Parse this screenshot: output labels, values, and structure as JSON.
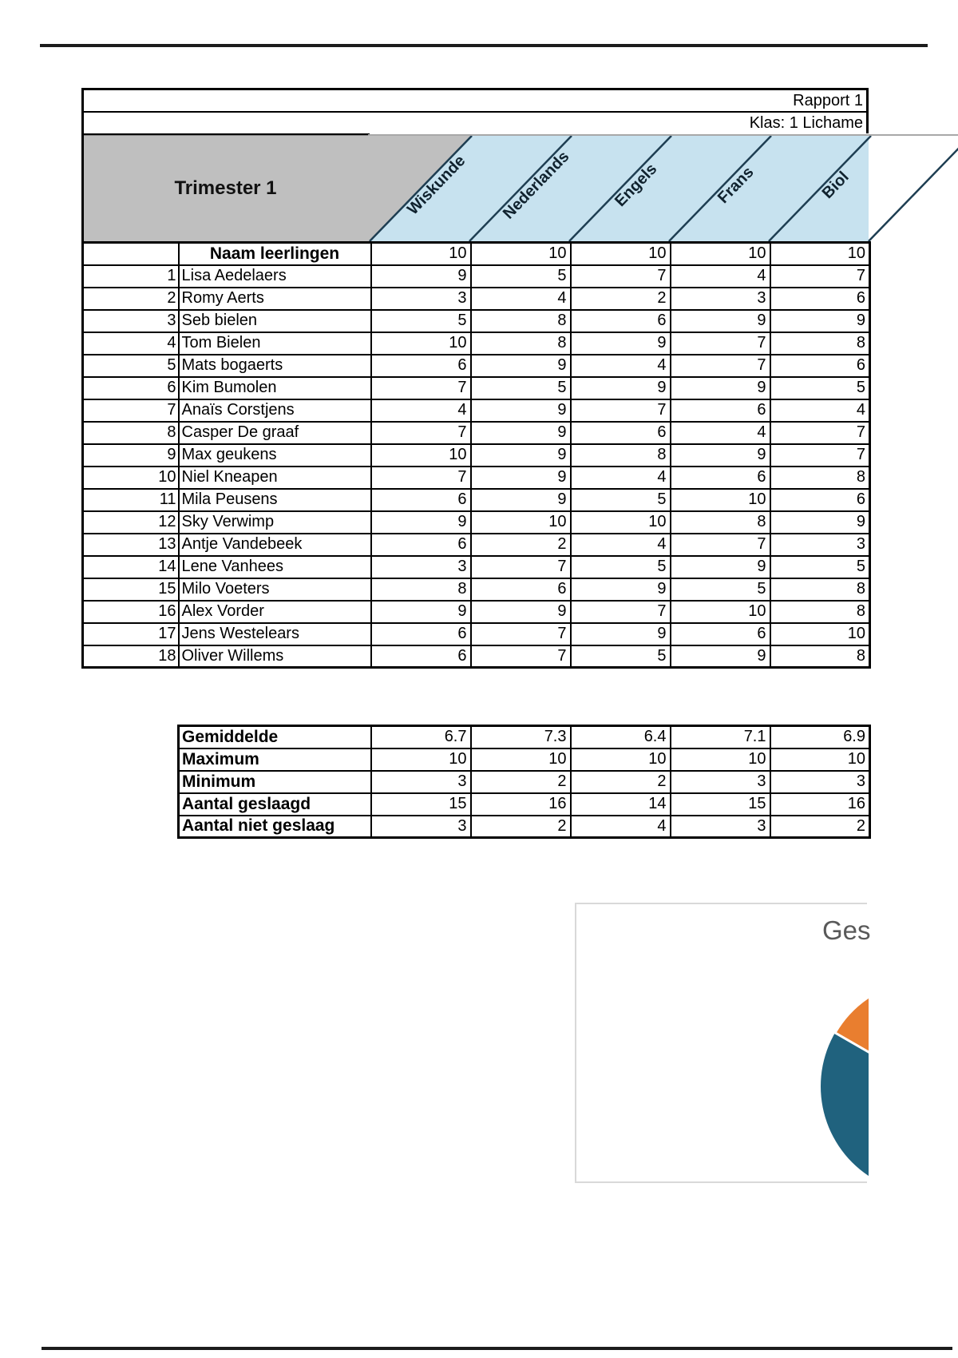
{
  "page": {
    "report_title": "Rapport 1",
    "class_label": "Klas: 1 Lichame",
    "trimester_label": "Trimester 1"
  },
  "table": {
    "students_header": "Naam leerlingen",
    "subjects": [
      "Wiskunde",
      "Nederlands",
      "Engels",
      "Frans",
      "Biol"
    ],
    "max_scores": [
      10,
      10,
      10,
      10,
      10
    ],
    "students": [
      {
        "nr": 1,
        "name": "Lisa Aedelaers",
        "grades": [
          9,
          5,
          7,
          4,
          7
        ]
      },
      {
        "nr": 2,
        "name": "Romy Aerts",
        "grades": [
          3,
          4,
          2,
          3,
          6
        ]
      },
      {
        "nr": 3,
        "name": "Seb bielen",
        "grades": [
          5,
          8,
          6,
          9,
          9
        ]
      },
      {
        "nr": 4,
        "name": "Tom Bielen",
        "grades": [
          10,
          8,
          9,
          7,
          8
        ]
      },
      {
        "nr": 5,
        "name": "Mats bogaerts",
        "grades": [
          6,
          9,
          4,
          7,
          6
        ]
      },
      {
        "nr": 6,
        "name": "Kim Bumolen",
        "grades": [
          7,
          5,
          9,
          9,
          5
        ]
      },
      {
        "nr": 7,
        "name": "Anaïs Corstjens",
        "grades": [
          4,
          9,
          7,
          6,
          4
        ]
      },
      {
        "nr": 8,
        "name": "Casper De graaf",
        "grades": [
          7,
          9,
          6,
          4,
          7
        ]
      },
      {
        "nr": 9,
        "name": "Max geukens",
        "grades": [
          10,
          9,
          8,
          9,
          7
        ]
      },
      {
        "nr": 10,
        "name": "Niel Kneapen",
        "grades": [
          7,
          9,
          4,
          6,
          8
        ]
      },
      {
        "nr": 11,
        "name": "Mila Peusens",
        "grades": [
          6,
          9,
          5,
          10,
          6
        ]
      },
      {
        "nr": 12,
        "name": "Sky Verwimp",
        "grades": [
          9,
          10,
          10,
          8,
          9
        ]
      },
      {
        "nr": 13,
        "name": "Antje Vandebeek",
        "grades": [
          6,
          2,
          4,
          7,
          3
        ]
      },
      {
        "nr": 14,
        "name": "Lene Vanhees",
        "grades": [
          3,
          7,
          5,
          9,
          5
        ]
      },
      {
        "nr": 15,
        "name": "Milo Voeters",
        "grades": [
          8,
          6,
          9,
          5,
          8
        ]
      },
      {
        "nr": 16,
        "name": "Alex Vorder",
        "grades": [
          9,
          9,
          7,
          10,
          8
        ]
      },
      {
        "nr": 17,
        "name": "Jens Westelears",
        "grades": [
          6,
          7,
          9,
          6,
          10
        ]
      },
      {
        "nr": 18,
        "name": "Oliver Willems",
        "grades": [
          6,
          7,
          5,
          9,
          8
        ]
      }
    ]
  },
  "stats": [
    {
      "label": "Gemiddelde",
      "values": [
        "6.7",
        "7.3",
        "6.4",
        "7.1",
        "6.9"
      ]
    },
    {
      "label": "Maximum",
      "values": [
        "10",
        "10",
        "10",
        "10",
        "10"
      ]
    },
    {
      "label": "Minimum",
      "values": [
        "3",
        "2",
        "2",
        "3",
        "3"
      ]
    },
    {
      "label": "Aantal geslaagd",
      "values": [
        "15",
        "16",
        "14",
        "15",
        "16"
      ]
    },
    {
      "label": "Aantal niet geslaag",
      "values": [
        "3",
        "2",
        "4",
        "3",
        "2"
      ]
    }
  ],
  "chart": {
    "type": "pie",
    "title_visible": "Ges"
  },
  "colors": {
    "header_gray": "#bfbfbf",
    "header_blue": "#c7e2ef",
    "slant_line": "#1e3e52",
    "subject_text": "#10222e",
    "pie_main": "#20627e",
    "pie_accent": "#e97e2f",
    "rule_dark": "#1c1c1c",
    "thin_gray_line": "#a8a8a8",
    "chart_title_gray": "#595959"
  }
}
